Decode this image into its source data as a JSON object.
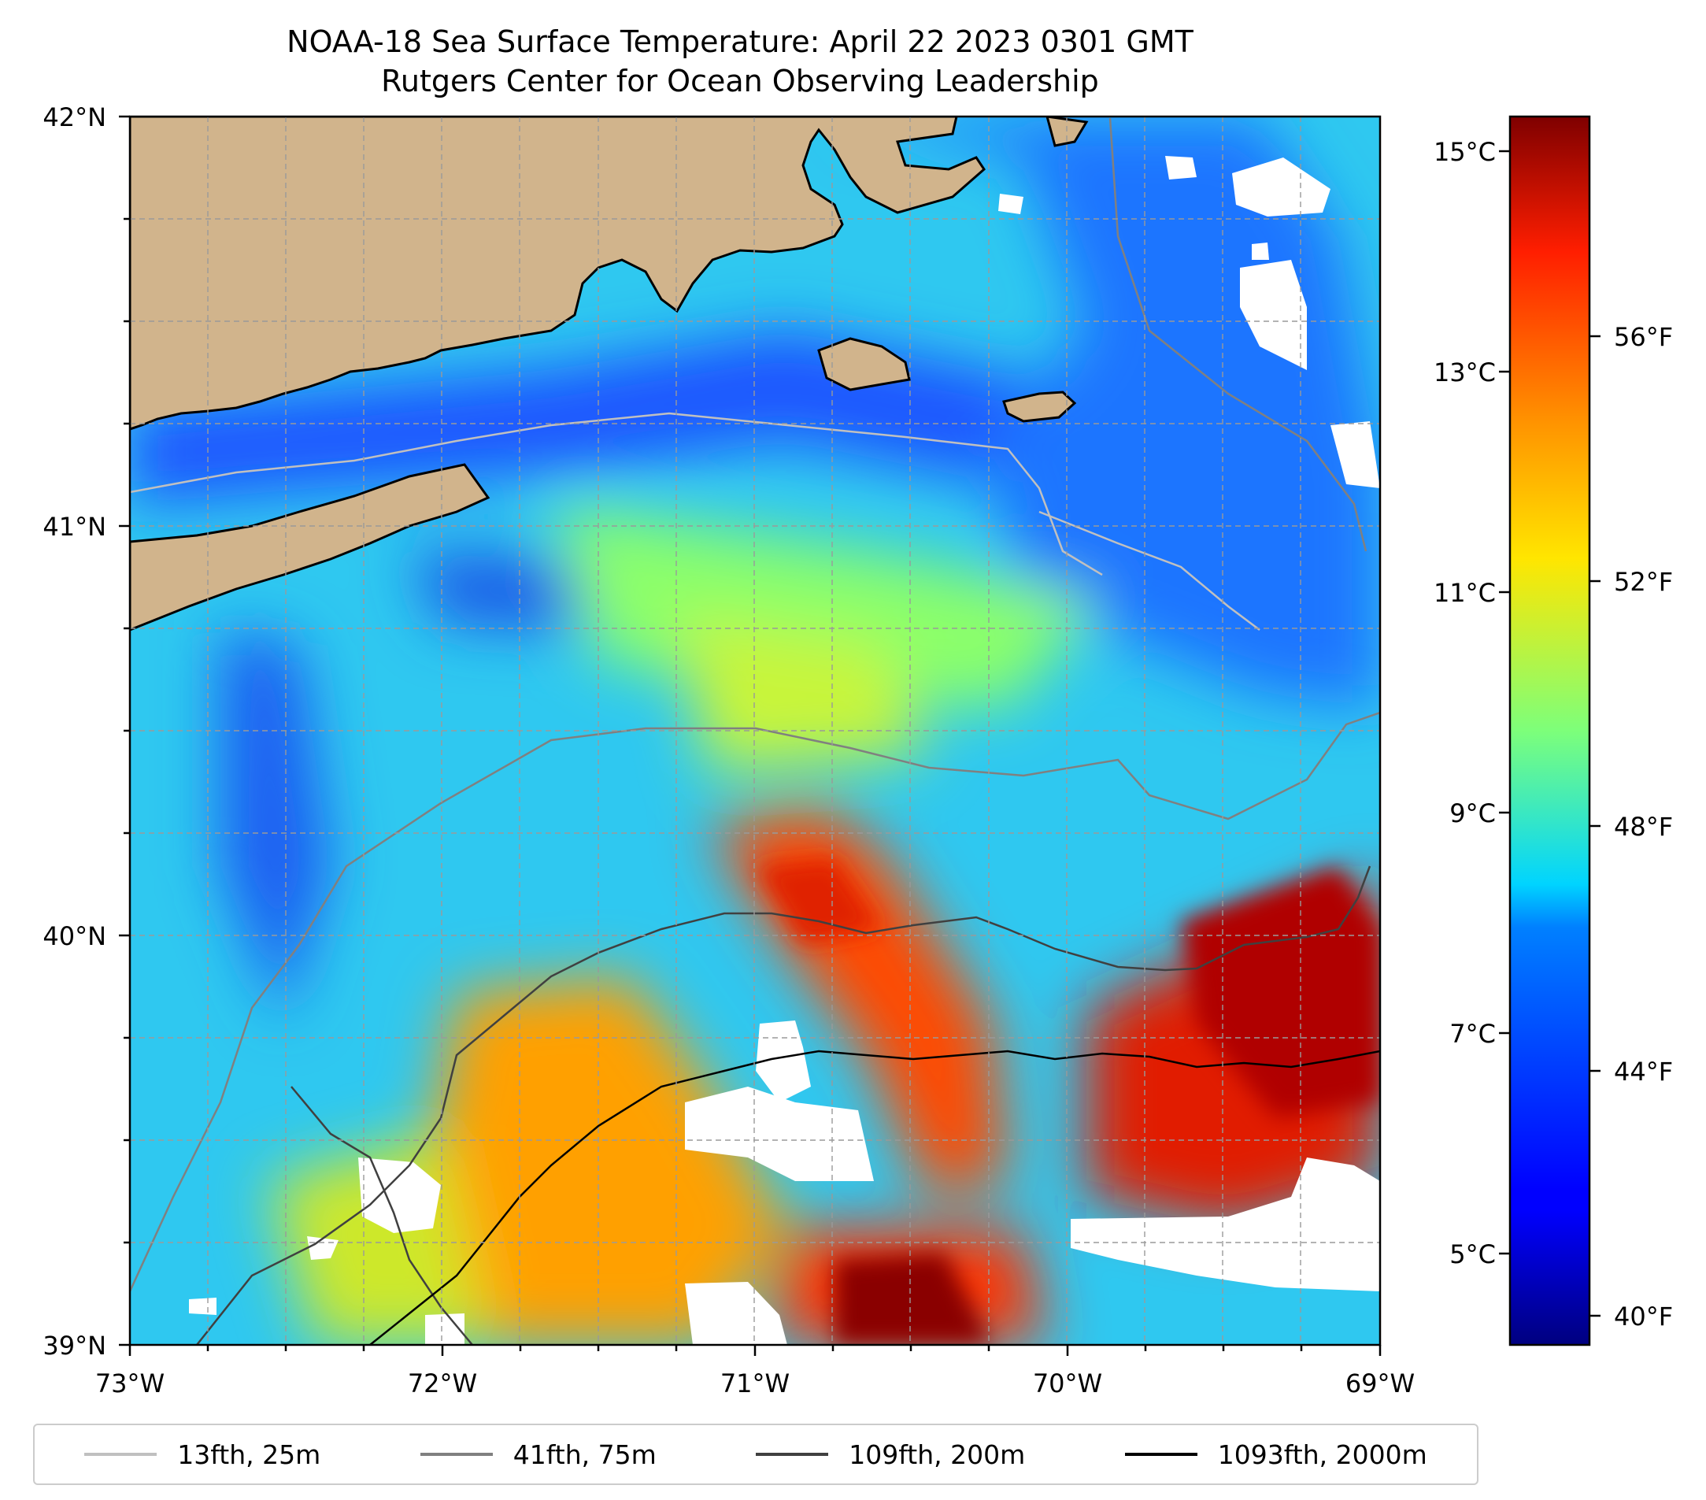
{
  "title": "NOAA-18 Sea Surface Temperature: April 22 2023 0301 GMT",
  "subtitle": "Rutgers Center for Ocean Observing Leadership",
  "map": {
    "lat_range": [
      39,
      42
    ],
    "lon_range": [
      -73,
      -69
    ],
    "lat_labels": [
      "42°N",
      "41°N",
      "40°N",
      "39°N"
    ],
    "lon_labels": [
      "73°W",
      "72°W",
      "71°W",
      "70°W",
      "69°W"
    ],
    "grid": true,
    "land_color": "#d1b48c",
    "no_data_color": "#ffffff"
  },
  "colorbar": {
    "colormap": "jet",
    "celsius_labels": [
      "15°C",
      "13°C",
      "11°C",
      "9°C",
      "7°C",
      "5°C"
    ],
    "fahrenheit_labels": [
      "56°F",
      "52°F",
      "48°F",
      "44°F",
      "40°F"
    ],
    "celsius_values": [
      15,
      13,
      11,
      9,
      7,
      5
    ],
    "fahrenheit_values": [
      56,
      52,
      48,
      44,
      40
    ],
    "range_f": [
      39.6,
      59.6
    ]
  },
  "legend": [
    {
      "label": "13fth, 25m",
      "color": "#c0c0c0"
    },
    {
      "label": "41fth, 75m",
      "color": "#808080"
    },
    {
      "label": "109fth, 200m",
      "color": "#404040"
    },
    {
      "label": "1093fth, 2000m",
      "color": "#000000"
    }
  ]
}
